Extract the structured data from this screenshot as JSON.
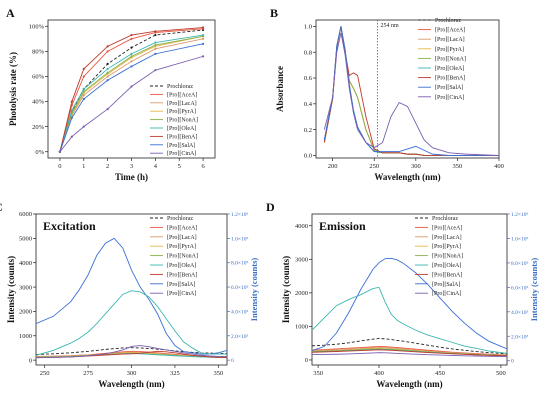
{
  "series_names": [
    "Prochloraz",
    "[Pro][AceA]",
    "[Pro][LacA]",
    "[Pro][PyrA]",
    "[Pro][NonA]",
    "[Pro][OleA]",
    "[Pro][BenA]",
    "[Pro][SalA]",
    "[Pro][CinA]"
  ],
  "colors": [
    "#222222",
    "#e8543f",
    "#d99a6c",
    "#e8b84a",
    "#86b24a",
    "#3cb7b0",
    "#c0392b",
    "#3b6fd4",
    "#7b5fb0"
  ],
  "chart_data": [
    {
      "id": "A",
      "panel_label": "A",
      "type": "line",
      "xlabel": "Time (h)",
      "ylabel": "Photolysis rate (%)",
      "xlim": [
        -0.5,
        6.5
      ],
      "ylim": [
        -0.05,
        1.05
      ],
      "xticks": [
        "0",
        "1",
        "2",
        "3",
        "4",
        "5",
        "6"
      ],
      "yticks": [
        "0%",
        "20%",
        "40%",
        "60%",
        "80%",
        "100%"
      ],
      "x": [
        0,
        0.5,
        1,
        2,
        3,
        4,
        6
      ],
      "series": [
        {
          "name": "Prochloraz",
          "values": [
            0,
            0.32,
            0.5,
            0.7,
            0.83,
            0.93,
            0.97
          ]
        },
        {
          "name": "[Pro][AceA]",
          "values": [
            0,
            0.37,
            0.6,
            0.8,
            0.9,
            0.95,
            0.98
          ]
        },
        {
          "name": "[Pro][LacA]",
          "values": [
            0,
            0.29,
            0.45,
            0.6,
            0.72,
            0.82,
            0.9
          ]
        },
        {
          "name": "[Pro][PyrA]",
          "values": [
            0,
            0.3,
            0.47,
            0.62,
            0.75,
            0.84,
            0.92
          ]
        },
        {
          "name": "[Pro][NonA]",
          "values": [
            0,
            0.31,
            0.48,
            0.63,
            0.76,
            0.85,
            0.92
          ]
        },
        {
          "name": "[Pro][OleA]",
          "values": [
            0,
            0.33,
            0.5,
            0.66,
            0.78,
            0.87,
            0.93
          ]
        },
        {
          "name": "[Pro][BenA]",
          "values": [
            0,
            0.4,
            0.66,
            0.84,
            0.93,
            0.96,
            0.99
          ]
        },
        {
          "name": "[Pro][SalA]",
          "values": [
            0,
            0.27,
            0.42,
            0.57,
            0.68,
            0.78,
            0.86
          ]
        },
        {
          "name": "[Pro][CinA]",
          "values": [
            0,
            0.12,
            0.2,
            0.34,
            0.52,
            0.65,
            0.76
          ]
        }
      ]
    },
    {
      "id": "B",
      "panel_label": "B",
      "type": "line",
      "xlabel": "Wavelength (nm)",
      "ylabel": "Absorbance",
      "xlim": [
        180,
        400
      ],
      "ylim": [
        -0.02,
        1.05
      ],
      "xticks": [
        "200",
        "250",
        "300",
        "350",
        "400"
      ],
      "yticks": [
        "0.0",
        "0.2",
        "0.4",
        "0.6",
        "0.8",
        "1.0"
      ],
      "annotation": "254 nm",
      "annotation_x": 254,
      "x": [
        190,
        200,
        205,
        210,
        215,
        220,
        225,
        230,
        240,
        250,
        260,
        270,
        280,
        290,
        300,
        310,
        320,
        340,
        360,
        400
      ],
      "series": [
        {
          "name": "Prochloraz",
          "values": [
            0.12,
            0.45,
            0.85,
            1.0,
            0.82,
            0.55,
            0.35,
            0.22,
            0.1,
            0.03,
            0.02,
            0.02,
            0.02,
            0.01,
            0.01,
            0.0,
            0.0,
            0.0,
            0.0,
            0.0
          ]
        },
        {
          "name": "[Pro][AceA]",
          "values": [
            0.1,
            0.44,
            0.84,
            1.0,
            0.8,
            0.58,
            0.52,
            0.45,
            0.2,
            0.04,
            0.02,
            0.02,
            0.02,
            0.01,
            0.01,
            0.0,
            0.0,
            0.0,
            0.0,
            0.0
          ]
        },
        {
          "name": "[Pro][LacA]",
          "values": [
            0.1,
            0.44,
            0.84,
            1.0,
            0.8,
            0.58,
            0.52,
            0.45,
            0.2,
            0.04,
            0.02,
            0.02,
            0.02,
            0.01,
            0.01,
            0.0,
            0.0,
            0.0,
            0.0,
            0.0
          ]
        },
        {
          "name": "[Pro][PyrA]",
          "values": [
            0.1,
            0.44,
            0.84,
            1.0,
            0.8,
            0.58,
            0.52,
            0.45,
            0.2,
            0.04,
            0.02,
            0.02,
            0.02,
            0.01,
            0.01,
            0.0,
            0.0,
            0.0,
            0.0,
            0.0
          ]
        },
        {
          "name": "[Pro][NonA]",
          "values": [
            0.1,
            0.44,
            0.84,
            1.0,
            0.8,
            0.58,
            0.52,
            0.45,
            0.2,
            0.04,
            0.02,
            0.02,
            0.02,
            0.01,
            0.01,
            0.0,
            0.0,
            0.0,
            0.0,
            0.0
          ]
        },
        {
          "name": "[Pro][OleA]",
          "values": [
            0.12,
            0.45,
            0.85,
            1.0,
            0.82,
            0.55,
            0.35,
            0.22,
            0.1,
            0.03,
            0.02,
            0.02,
            0.02,
            0.01,
            0.01,
            0.0,
            0.0,
            0.0,
            0.0,
            0.0
          ]
        },
        {
          "name": "[Pro][BenA]",
          "values": [
            0.1,
            0.44,
            0.84,
            1.0,
            0.8,
            0.62,
            0.64,
            0.62,
            0.3,
            0.05,
            0.02,
            0.02,
            0.02,
            0.01,
            0.01,
            0.0,
            0.0,
            0.0,
            0.0,
            0.0
          ]
        },
        {
          "name": "[Pro][SalA]",
          "values": [
            0.12,
            0.45,
            0.85,
            1.0,
            0.82,
            0.55,
            0.35,
            0.22,
            0.1,
            0.03,
            0.03,
            0.03,
            0.03,
            0.05,
            0.07,
            0.04,
            0.01,
            0.0,
            0.0,
            0.0
          ]
        },
        {
          "name": "[Pro][CinA]",
          "values": [
            0.2,
            0.45,
            0.8,
            0.95,
            0.78,
            0.52,
            0.33,
            0.2,
            0.1,
            0.06,
            0.1,
            0.3,
            0.41,
            0.38,
            0.25,
            0.12,
            0.06,
            0.02,
            0.01,
            0.0
          ]
        }
      ]
    },
    {
      "id": "C",
      "panel_label": "C",
      "title": "Excitation",
      "type": "line",
      "xlabel": "Wavelength (nm)",
      "ylabel": "Intensity (counts)",
      "y2label": "Intensity (counts)",
      "xlim": [
        245,
        355
      ],
      "ylim": [
        -200,
        6000
      ],
      "y2lim": [
        -0.04,
        1.2
      ],
      "xticks": [
        "250",
        "275",
        "300",
        "325",
        "350"
      ],
      "yticks": [
        "0",
        "1000",
        "2000",
        "3000",
        "4000",
        "5000",
        "6000"
      ],
      "y2ticks": [
        "0",
        "2.0×10⁵",
        "4.0×10⁵",
        "6.0×10⁵",
        "8.0×10⁵",
        "1.0×10⁶",
        "1.2×10⁶"
      ],
      "x": [
        245,
        255,
        265,
        270,
        275,
        280,
        285,
        290,
        295,
        300,
        305,
        310,
        315,
        320,
        325,
        330,
        335,
        340,
        345,
        350,
        355
      ],
      "series": [
        {
          "name": "Prochloraz",
          "values": [
            230,
            260,
            300,
            330,
            360,
            400,
            440,
            470,
            500,
            510,
            500,
            480,
            450,
            420,
            380,
            350,
            320,
            300,
            290,
            280,
            270
          ]
        },
        {
          "name": "[Pro][AceA]",
          "values": [
            150,
            160,
            180,
            200,
            220,
            250,
            280,
            310,
            340,
            360,
            350,
            330,
            300,
            270,
            240,
            210,
            190,
            170,
            160,
            150,
            150
          ]
        },
        {
          "name": "[Pro][LacA]",
          "values": [
            140,
            150,
            170,
            190,
            210,
            230,
            260,
            290,
            310,
            330,
            320,
            300,
            280,
            250,
            220,
            200,
            180,
            160,
            150,
            140,
            140
          ]
        },
        {
          "name": "[Pro][PyrA]",
          "values": [
            130,
            140,
            160,
            180,
            200,
            220,
            240,
            270,
            290,
            300,
            290,
            270,
            250,
            230,
            200,
            180,
            160,
            150,
            140,
            130,
            130
          ]
        },
        {
          "name": "[Pro][NonA]",
          "values": [
            120,
            130,
            150,
            170,
            190,
            210,
            230,
            250,
            270,
            280,
            270,
            250,
            230,
            210,
            190,
            170,
            150,
            140,
            130,
            120,
            120
          ]
        },
        {
          "name": "[Pro][OleA]",
          "values": [
            110,
            120,
            140,
            160,
            180,
            200,
            220,
            240,
            260,
            270,
            260,
            240,
            220,
            200,
            180,
            160,
            140,
            130,
            120,
            110,
            110
          ]
        },
        {
          "name": "[Pro][BenA]",
          "values": [
            100,
            110,
            130,
            150,
            170,
            190,
            210,
            230,
            250,
            260,
            280,
            320,
            360,
            340,
            300,
            250,
            200,
            160,
            130,
            110,
            100
          ]
        },
        {
          "name": "[Pro][SalA]",
          "values": [
            1500,
            1800,
            2400,
            2900,
            3500,
            4300,
            4800,
            5000,
            4600,
            3700,
            3000,
            2500,
            1900,
            1100,
            600,
            350,
            300,
            250,
            250,
            300,
            400
          ]
        },
        {
          "name": "[Pro][CinA]",
          "values": [
            100,
            110,
            130,
            150,
            180,
            220,
            260,
            330,
            420,
            560,
            600,
            550,
            480,
            420,
            360,
            300,
            250,
            200,
            170,
            150,
            140
          ]
        }
      ],
      "series_y2": [
        {
          "name": "[Pro][OleA]",
          "values": [
            0.04,
            0.08,
            0.14,
            0.18,
            0.23,
            0.3,
            0.38,
            0.46,
            0.54,
            0.57,
            0.56,
            0.52,
            0.44,
            0.34,
            0.24,
            0.15,
            0.1,
            0.06,
            0.05,
            0.05,
            0.05
          ]
        }
      ]
    },
    {
      "id": "D",
      "panel_label": "D",
      "title": "Emission",
      "type": "line",
      "xlabel": "Wavelength (nm)",
      "ylabel": "Intensity (counts)",
      "y2label": "Intensity (counts)",
      "xlim": [
        345,
        505
      ],
      "ylim": [
        -150,
        4350
      ],
      "y2lim": [
        -0.035,
        1.2
      ],
      "xticks": [
        "350",
        "400",
        "450",
        "500"
      ],
      "yticks": [
        "0",
        "1000",
        "2000",
        "3000",
        "4000"
      ],
      "y2ticks": [
        "0",
        "2.0×10⁵",
        "4.0×10⁵",
        "6.0×10⁵",
        "8.0×10⁵",
        "1.0×10⁶",
        "1.2×10⁶"
      ],
      "x": [
        345,
        355,
        365,
        375,
        385,
        395,
        400,
        405,
        410,
        415,
        420,
        430,
        440,
        450,
        460,
        470,
        480,
        490,
        505
      ],
      "series": [
        {
          "name": "Prochloraz",
          "values": [
            420,
            440,
            470,
            510,
            570,
            620,
            640,
            630,
            610,
            580,
            560,
            500,
            440,
            380,
            330,
            290,
            250,
            220,
            180
          ]
        },
        {
          "name": "[Pro][AceA]",
          "values": [
            300,
            310,
            330,
            350,
            370,
            390,
            400,
            395,
            385,
            370,
            355,
            320,
            290,
            260,
            230,
            210,
            190,
            170,
            150
          ]
        },
        {
          "name": "[Pro][LacA]",
          "values": [
            280,
            290,
            300,
            320,
            340,
            360,
            370,
            365,
            355,
            340,
            325,
            295,
            265,
            240,
            215,
            195,
            175,
            160,
            140
          ]
        },
        {
          "name": "[Pro][PyrA]",
          "values": [
            260,
            270,
            285,
            300,
            320,
            340,
            345,
            340,
            330,
            318,
            305,
            278,
            250,
            225,
            205,
            185,
            168,
            152,
            135
          ]
        },
        {
          "name": "[Pro][NonA]",
          "values": [
            250,
            260,
            272,
            288,
            305,
            322,
            328,
            322,
            314,
            302,
            290,
            265,
            240,
            218,
            198,
            180,
            163,
            148,
            130
          ]
        },
        {
          "name": "[Pro][OleA]",
          "values": [
            240,
            250,
            262,
            276,
            292,
            308,
            314,
            308,
            300,
            290,
            278,
            255,
            232,
            210,
            190,
            174,
            158,
            143,
            126
          ]
        },
        {
          "name": "[Pro][BenA]",
          "values": [
            230,
            240,
            252,
            266,
            280,
            296,
            302,
            296,
            288,
            278,
            266,
            244,
            222,
            202,
            184,
            168,
            152,
            138,
            122
          ]
        },
        {
          "name": "[Pro][SalA]",
          "values": [
            280,
            400,
            800,
            1400,
            2100,
            2700,
            2900,
            3020,
            3030,
            2980,
            2880,
            2600,
            2250,
            1850,
            1450,
            1100,
            800,
            560,
            330
          ]
        },
        {
          "name": "[Pro][CinA]",
          "values": [
            160,
            165,
            170,
            180,
            195,
            210,
            218,
            212,
            205,
            196,
            188,
            172,
            158,
            145,
            134,
            124,
            115,
            108,
            100
          ]
        }
      ],
      "series_y2": [
        {
          "name": "[Pro][OleA]",
          "values": [
            0.25,
            0.35,
            0.45,
            0.5,
            0.54,
            0.59,
            0.6,
            0.48,
            0.38,
            0.33,
            0.3,
            0.25,
            0.21,
            0.18,
            0.15,
            0.12,
            0.1,
            0.08,
            0.06
          ]
        }
      ]
    }
  ]
}
